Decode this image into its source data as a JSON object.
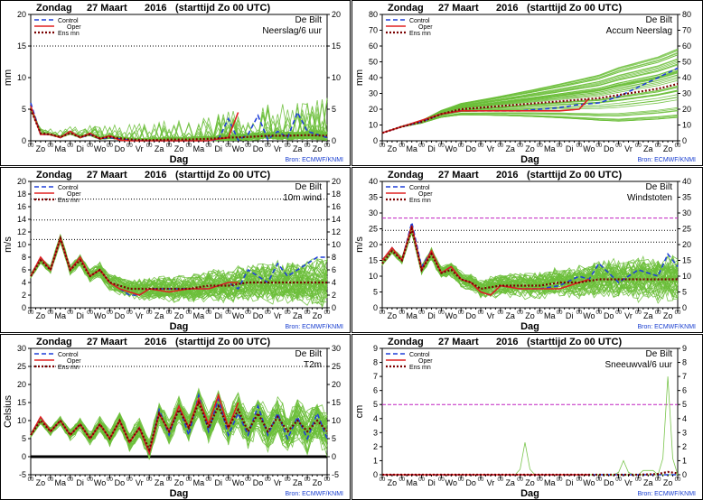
{
  "header": {
    "weekday": "Zondag",
    "date": "27 Maart",
    "year": "2016",
    "runinfo": "(starttijd  Zo 00 UTC)"
  },
  "xaxis": {
    "label": "Dag",
    "days": [
      "Zo",
      "Ma",
      "Di",
      "Wo",
      "Do",
      "Vr",
      "Za",
      "Zo",
      "Ma",
      "Di",
      "Wo",
      "Do",
      "Vr",
      "Za",
      "Zo"
    ],
    "hour_tick_label": "00"
  },
  "legend": {
    "control": "Control",
    "oper": "Oper",
    "ensmn": "Ens mn"
  },
  "source": "Bron: ECMWF/KNMI",
  "station": "De Bilt",
  "colors": {
    "control": "#1f3fd9",
    "oper": "#e02020",
    "ensmn": "#7a0000",
    "members": "#6cbf3a",
    "source": "#1a3fd0",
    "threshold": "#c020c0"
  },
  "chart_data": [
    {
      "id": "precip",
      "type": "line",
      "title": "Neerslag/6 uur",
      "ylabel": "mm",
      "ylim": [
        0,
        20
      ],
      "yticks": [
        0,
        5,
        10,
        15,
        20
      ],
      "y2ticks": [
        0,
        5,
        10,
        15,
        20
      ],
      "hlines": [
        {
          "y": 15,
          "style": "dotted"
        }
      ],
      "x_range_days": [
        0,
        15
      ],
      "series": [
        {
          "name": "Control",
          "x": [
            0,
            0.5,
            1,
            1.5,
            2,
            2.5,
            3,
            3.5,
            4,
            5,
            6,
            7,
            8,
            9,
            9.5,
            10,
            10.5,
            11,
            11.5,
            12,
            12.5,
            13,
            13.5,
            14,
            14.5,
            15
          ],
          "y": [
            6,
            1,
            1,
            0.5,
            1.5,
            0.5,
            1,
            0.3,
            0.5,
            0.1,
            0,
            0,
            0,
            0,
            0.2,
            3.5,
            0.1,
            1,
            4,
            0.2,
            1.5,
            0.5,
            4.5,
            1.5,
            1,
            0.5
          ]
        },
        {
          "name": "Oper",
          "x": [
            0,
            0.5,
            1,
            1.5,
            2,
            2.5,
            3,
            3.5,
            4,
            4.5,
            5,
            6,
            7,
            8,
            9,
            9.5,
            10,
            10.5
          ],
          "y": [
            5.5,
            1,
            1,
            0.5,
            1.5,
            0.5,
            1.2,
            0.3,
            0.8,
            0.1,
            0,
            0,
            0,
            0,
            0,
            0.3,
            0.5,
            4.5
          ]
        },
        {
          "name": "Ens mn",
          "x": [
            0,
            0.5,
            1,
            1.5,
            2,
            2.5,
            3,
            3.5,
            4,
            5,
            6,
            7,
            8,
            9,
            10,
            11,
            12,
            13,
            14,
            15
          ],
          "y": [
            5,
            1.2,
            1,
            0.6,
            1.2,
            0.6,
            1,
            0.4,
            0.6,
            0.2,
            0.1,
            0.2,
            0.2,
            0.3,
            0.5,
            0.6,
            0.8,
            0.8,
            0.9,
            0.8
          ]
        }
      ]
    },
    {
      "id": "accum",
      "type": "line",
      "title": "Accum Neerslag",
      "ylabel": "mm",
      "ylim": [
        0,
        80
      ],
      "yticks": [
        0,
        10,
        20,
        30,
        40,
        50,
        60,
        70,
        80
      ],
      "y2ticks": [
        0,
        10,
        20,
        30,
        40,
        50,
        60,
        70,
        80
      ],
      "hlines": [],
      "x_range_days": [
        0,
        15
      ],
      "series": [
        {
          "name": "Control",
          "x": [
            0,
            1,
            2,
            3,
            4,
            5,
            6,
            7,
            8,
            9,
            10,
            11,
            12,
            13,
            14,
            15
          ],
          "y": [
            5,
            9,
            12,
            17,
            19,
            19,
            19,
            19,
            20,
            21,
            23,
            24,
            28,
            34,
            40,
            46
          ]
        },
        {
          "name": "Oper",
          "x": [
            0,
            1,
            2,
            3,
            4,
            5,
            6,
            7,
            8,
            9,
            10,
            10.5
          ],
          "y": [
            5,
            9,
            13,
            17,
            19,
            19,
            19,
            19,
            19,
            19,
            20,
            27
          ]
        },
        {
          "name": "Ens mn",
          "x": [
            0,
            1,
            2,
            3,
            4,
            5,
            6,
            7,
            8,
            9,
            10,
            11,
            12,
            13,
            14,
            15
          ],
          "y": [
            5,
            9,
            12,
            17,
            20,
            21,
            22,
            23,
            24,
            25,
            26,
            27,
            29,
            31,
            33,
            36
          ]
        }
      ]
    },
    {
      "id": "wind",
      "type": "line",
      "title": "10m wind",
      "ylabel": "m/s",
      "ylim": [
        0,
        20
      ],
      "yticks": [
        0,
        2,
        4,
        6,
        8,
        10,
        12,
        14,
        16,
        18,
        20
      ],
      "y2ticks": [
        0,
        2,
        4,
        6,
        8,
        10,
        12,
        14,
        16,
        18,
        20
      ],
      "hlines": [
        {
          "y": 17.2,
          "style": "dotted"
        },
        {
          "y": 13.9,
          "style": "dotted"
        },
        {
          "y": 10.8,
          "style": "dotted"
        }
      ],
      "x_range_days": [
        0,
        15
      ],
      "series": [
        {
          "name": "Control",
          "x": [
            0,
            0.5,
            1,
            1.5,
            2,
            2.5,
            3,
            3.5,
            4,
            4.5,
            5,
            5.5,
            6,
            7,
            8,
            9,
            10,
            10.5,
            11,
            12,
            12.5,
            13,
            13.5,
            14,
            14.5,
            15
          ],
          "y": [
            5,
            8,
            6,
            11,
            6,
            8,
            5,
            6,
            4,
            3,
            2,
            2,
            3,
            3,
            3,
            3,
            4,
            3,
            6,
            4,
            7,
            5,
            6,
            7,
            8,
            8
          ]
        },
        {
          "name": "Oper",
          "x": [
            0,
            0.5,
            1,
            1.5,
            2,
            2.5,
            3,
            3.5,
            4,
            4.5,
            5,
            5.5,
            6,
            7,
            8,
            9,
            10,
            10.5
          ],
          "y": [
            5,
            8,
            6,
            11,
            6,
            8,
            5,
            6,
            4,
            3,
            2.5,
            2,
            3,
            2.5,
            3,
            3,
            4,
            4
          ]
        },
        {
          "name": "Ens mn",
          "x": [
            0,
            0.5,
            1,
            1.5,
            2,
            2.5,
            3,
            3.5,
            4,
            4.5,
            5,
            6,
            7,
            8,
            9,
            10,
            11,
            12,
            13,
            14,
            15
          ],
          "y": [
            5,
            7.5,
            6,
            11,
            6,
            7.5,
            5,
            6,
            4,
            3.5,
            3,
            3,
            3,
            3,
            3.5,
            3.5,
            4,
            4,
            4,
            4,
            4
          ]
        }
      ]
    },
    {
      "id": "gust",
      "type": "line",
      "title": "Windstoten",
      "ylabel": "m/s",
      "ylim": [
        0,
        40
      ],
      "yticks": [
        0,
        5,
        10,
        15,
        20,
        25,
        30,
        35,
        40
      ],
      "y2ticks": [
        0,
        5,
        10,
        15,
        20,
        25,
        30,
        35,
        40
      ],
      "hlines": [
        {
          "y": 28.4,
          "style": "dashed-magenta"
        },
        {
          "y": 24.5,
          "style": "dotted"
        },
        {
          "y": 20.8,
          "style": "dotted"
        }
      ],
      "x_range_days": [
        0,
        15
      ],
      "series": [
        {
          "name": "Control",
          "x": [
            0,
            0.5,
            1,
            1.5,
            2,
            2.5,
            3,
            3.5,
            4,
            4.5,
            5,
            5.5,
            6,
            7,
            8,
            9,
            10,
            10.5,
            11,
            12,
            13,
            14,
            14.5,
            15
          ],
          "y": [
            15,
            19,
            15,
            27,
            13,
            18,
            11,
            13,
            9,
            8,
            5,
            4,
            7,
            6,
            6,
            7,
            10,
            9,
            14,
            8,
            12,
            10,
            17,
            13
          ]
        },
        {
          "name": "Oper",
          "x": [
            0,
            0.5,
            1,
            1.5,
            2,
            2.5,
            3,
            3.5,
            4,
            4.5,
            5,
            5.5,
            6,
            7,
            8,
            9,
            10,
            10.5
          ],
          "y": [
            15,
            19,
            15,
            26,
            12,
            18,
            11,
            13,
            9,
            8,
            5,
            4,
            7,
            6,
            6,
            6,
            8,
            9
          ]
        },
        {
          "name": "Ens mn",
          "x": [
            0,
            0.5,
            1,
            1.5,
            2,
            2.5,
            3,
            3.5,
            4,
            4.5,
            5,
            6,
            7,
            8,
            9,
            10,
            11,
            12,
            13,
            14,
            15
          ],
          "y": [
            14,
            18,
            15,
            25,
            12,
            17,
            11,
            12,
            9,
            8,
            6,
            7,
            7,
            7,
            8,
            8,
            9,
            9,
            9,
            9,
            9
          ]
        }
      ]
    },
    {
      "id": "t2m",
      "type": "line",
      "title": "T2m",
      "ylabel": "Celsius",
      "ylim": [
        -5,
        30
      ],
      "yticks": [
        -5,
        0,
        5,
        10,
        15,
        20,
        25,
        30
      ],
      "y2ticks": [
        -5,
        0,
        5,
        10,
        15,
        20,
        25,
        30
      ],
      "hlines": [
        {
          "y": 25,
          "style": "dotted"
        },
        {
          "y": 0,
          "style": "thick"
        }
      ],
      "x_range_days": [
        0,
        15
      ],
      "series": [
        {
          "name": "Control",
          "x": [
            0,
            0.5,
            1,
            1.5,
            2,
            2.5,
            3,
            3.5,
            4,
            4.5,
            5,
            5.5,
            6,
            6.5,
            7,
            7.5,
            8,
            8.5,
            9,
            9.5,
            10,
            10.5,
            11,
            11.5,
            12,
            12.5,
            13,
            13.5,
            14,
            14.5,
            15
          ],
          "y": [
            6,
            11,
            7,
            10,
            6,
            9,
            5,
            9,
            5,
            10,
            4,
            8,
            1,
            13,
            6,
            14,
            6,
            17,
            7,
            16,
            6,
            12,
            6,
            14,
            6,
            12,
            5,
            11,
            5,
            12,
            5
          ]
        },
        {
          "name": "Oper",
          "x": [
            0,
            0.5,
            1,
            1.5,
            2,
            2.5,
            3,
            3.5,
            4,
            4.5,
            5,
            5.5,
            6,
            6.5,
            7,
            7.5,
            8,
            8.5,
            9,
            9.5,
            10,
            10.5
          ],
          "y": [
            6,
            11,
            7,
            10,
            6,
            9,
            5,
            9,
            5,
            10,
            4,
            8,
            1,
            12,
            7,
            14,
            8,
            16,
            9,
            17,
            8,
            15
          ]
        },
        {
          "name": "Ens mn",
          "x": [
            0,
            0.5,
            1,
            1.5,
            2,
            2.5,
            3,
            3.5,
            4,
            4.5,
            5,
            5.5,
            6,
            6.5,
            7,
            7.5,
            8,
            8.5,
            9,
            9.5,
            10,
            10.5,
            11,
            11.5,
            12,
            12.5,
            13,
            13.5,
            14,
            14.5,
            15
          ],
          "y": [
            6,
            10,
            7,
            10,
            6,
            9,
            5,
            9,
            5,
            10,
            4,
            8,
            2,
            12,
            7,
            13,
            8,
            15,
            8,
            14,
            8,
            13,
            7,
            12,
            7,
            11,
            7,
            10,
            7,
            10,
            7
          ]
        }
      ]
    },
    {
      "id": "snow",
      "type": "line",
      "title": "Sneeuwval/6 uur",
      "ylabel": "cm",
      "ylim": [
        0,
        9
      ],
      "yticks": [
        0,
        1,
        2,
        3,
        4,
        5,
        6,
        7,
        8,
        9
      ],
      "y2ticks": [
        0,
        1,
        2,
        3,
        4,
        5,
        6,
        7,
        8,
        9
      ],
      "hlines": [
        {
          "y": 5,
          "style": "dashed-magenta"
        }
      ],
      "x_range_days": [
        0,
        15
      ],
      "series": [
        {
          "name": "Control",
          "x": [
            0,
            15
          ],
          "y": [
            0,
            0
          ]
        },
        {
          "name": "Oper",
          "x": [
            0,
            10.5
          ],
          "y": [
            0,
            0
          ]
        },
        {
          "name": "Ens mn",
          "x": [
            0,
            13,
            14,
            14.5,
            15
          ],
          "y": [
            0,
            0,
            0.05,
            0.2,
            0.1
          ]
        }
      ]
    }
  ]
}
